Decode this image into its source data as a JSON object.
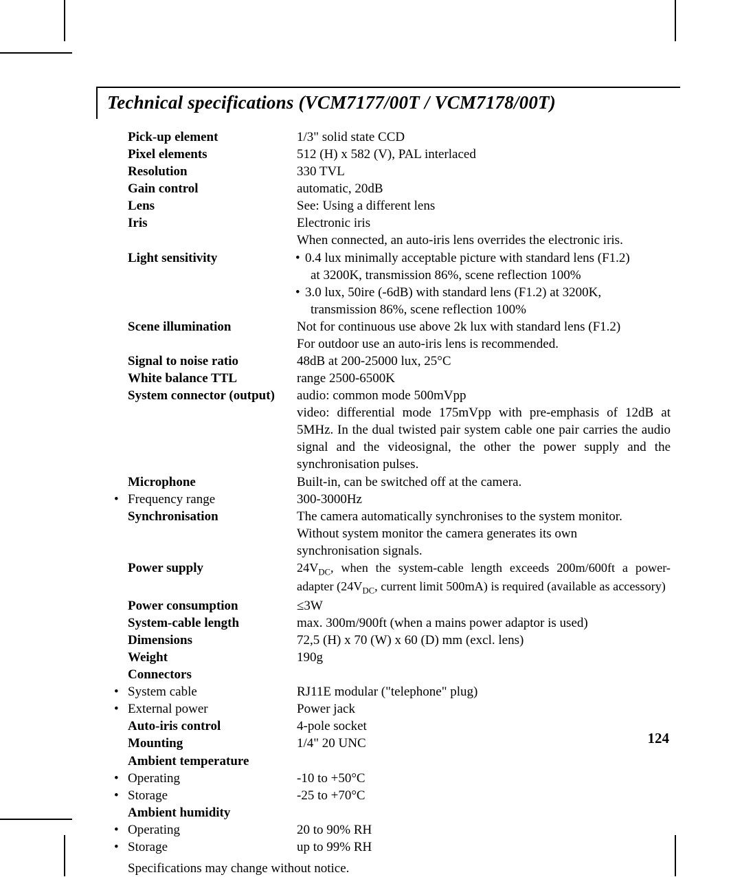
{
  "title": "Technical specifications (VCM7177/00T / VCM7178/00T)",
  "page_number": "124",
  "footnote": "Specifications may change without notice.",
  "specs": {
    "pick_up_element": {
      "label": "Pick-up element",
      "value": "1/3\" solid state CCD"
    },
    "pixel_elements": {
      "label": "Pixel elements",
      "value": "512 (H) x 582 (V), PAL interlaced"
    },
    "resolution": {
      "label": "Resolution",
      "value": "330 TVL"
    },
    "gain_control": {
      "label": "Gain control",
      "value": "automatic, 20dB"
    },
    "lens": {
      "label": "Lens",
      "value": "See: Using a different lens"
    },
    "iris": {
      "label": "Iris",
      "value_l1": "Electronic iris",
      "value_l2": "When connected, an auto-iris lens overrides the electronic iris."
    },
    "light_sensitivity": {
      "label": "Light sensitivity",
      "b1_l1": "0.4 lux minimally acceptable picture with standard lens (F1.2)",
      "b1_l2": "at 3200K, transmission 86%, scene reflection 100%",
      "b2_l1": "3.0 lux, 50ire (-6dB) with standard lens (F1.2) at 3200K,",
      "b2_l2": "transmission 86%, scene reflection 100%"
    },
    "scene_illumination": {
      "label": "Scene illumination",
      "l1": "Not for continuous use above 2k lux with standard lens (F1.2)",
      "l2": "For outdoor use an auto-iris lens is recommended."
    },
    "snr": {
      "label": "Signal to noise ratio",
      "value": "48dB at 200-25000 lux, 25°C"
    },
    "white_balance": {
      "label": "White balance TTL",
      "value": "range 2500-6500K"
    },
    "system_connector": {
      "label": "System connector (output)",
      "l1": "audio: common mode 500mVpp",
      "l2": "video: differential mode 175mVpp with pre-emphasis of 12dB at 5MHz. In the dual twisted pair system cable one pair carries the audio signal and the videosignal, the other the power supply and the synchronisation pulses."
    },
    "microphone": {
      "label": "Microphone",
      "value": "Built-in, can be switched off at the camera."
    },
    "freq_range": {
      "label": "Frequency range",
      "value": "300-3000Hz"
    },
    "sync": {
      "label": "Synchronisation",
      "l1": "The camera automatically synchronises to the system monitor.",
      "l2": "Without system monitor the camera generates its own",
      "l3": "synchronisation signals."
    },
    "power_supply": {
      "label": "Power supply",
      "l1a": "24V",
      "l1b": ", when the system-cable length exceeds 200m/600ft a power-adapter (24V",
      "l1c": ", current limit 500mA) is required (available as accessory)",
      "sub": "DC"
    },
    "power_consumption": {
      "label": "Power consumption",
      "value": "≤3W"
    },
    "cable_length": {
      "label": "System-cable length",
      "value": "max. 300m/900ft (when a mains power adaptor is used)"
    },
    "dimensions": {
      "label": "Dimensions",
      "value": "72,5 (H) x 70 (W) x 60 (D) mm (excl. lens)"
    },
    "weight": {
      "label": "Weight",
      "value": "190g"
    },
    "connectors": {
      "label": "Connectors"
    },
    "conn_system": {
      "label": "System cable",
      "value": "RJ11E modular (\"telephone\" plug)"
    },
    "conn_ext_power": {
      "label": "External power",
      "value": "Power jack"
    },
    "auto_iris": {
      "label": "Auto-iris control",
      "value": "4-pole socket"
    },
    "mounting": {
      "label": "Mounting",
      "value": "1/4\" 20 UNC"
    },
    "ambient_temp": {
      "label": "Ambient temperature"
    },
    "temp_operating": {
      "label": "Operating",
      "value": "-10 to +50°C"
    },
    "temp_storage": {
      "label": "Storage",
      "value": "-25 to +70°C"
    },
    "ambient_humidity": {
      "label": "Ambient humidity"
    },
    "hum_operating": {
      "label": "Operating",
      "value": "20 to 90% RH"
    },
    "hum_storage": {
      "label": "Storage",
      "value": "up to 99% RH"
    }
  }
}
